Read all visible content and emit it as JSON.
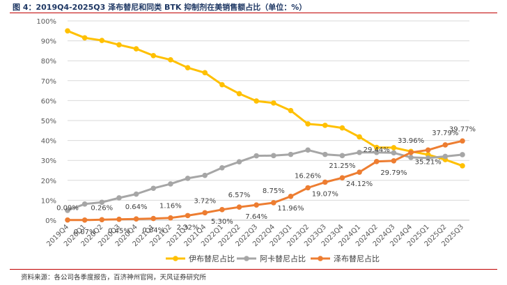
{
  "header": {
    "title": "图 4：2019Q4-2025Q3 泽布替尼和同类 BTK 抑制剂在美销售额占比（单位：%）"
  },
  "footer": {
    "source": "资料来源：各公司各季度报告，百济神州官网，天风证券研究所"
  },
  "chart_data": {
    "type": "line",
    "title": "2019Q4-2025Q3 泽布替尼和同类 BTK 抑制剂在美销售额占比（单位：%）",
    "xlabel": "",
    "ylabel": "",
    "ylim": [
      0,
      100
    ],
    "yticks": [
      0,
      10,
      20,
      30,
      40,
      50,
      60,
      70,
      80,
      90,
      100
    ],
    "ytick_labels": [
      "0%",
      "10%",
      "20%",
      "30%",
      "40%",
      "50%",
      "60%",
      "70%",
      "80%",
      "90%",
      "100%"
    ],
    "categories": [
      "2019Q4",
      "2020Q1",
      "2020Q2",
      "2020Q3",
      "2020Q4",
      "2021Q1",
      "2021Q2",
      "2021Q3",
      "2021Q4",
      "2022Q1",
      "2022Q2",
      "2022Q3",
      "2022Q4",
      "2023Q1",
      "2023Q2",
      "2023Q3",
      "2023Q4",
      "2024Q1",
      "2024Q2",
      "2024Q3",
      "2024Q4",
      "2025Q1",
      "2025Q2",
      "2025Q3"
    ],
    "series": [
      {
        "name": "伊布替尼占比",
        "color": "#FFC000",
        "values": [
          95,
          91.5,
          90.2,
          88,
          86,
          82.6,
          80.5,
          76.5,
          74,
          68,
          63.5,
          59.8,
          58.8,
          55,
          48.3,
          47.6,
          46.3,
          41.8,
          36.5,
          36.4,
          34.5,
          32.9,
          30.4,
          27.3
        ]
      },
      {
        "name": "阿卡替尼占比",
        "color": "#A6A6A6",
        "values": [
          4.9,
          8.1,
          9,
          11.2,
          13.1,
          16,
          18.2,
          21,
          22.5,
          26.3,
          29.3,
          32.3,
          32.4,
          33,
          35.2,
          33,
          32.4,
          34,
          34,
          33.8,
          31.5,
          31.2,
          32,
          32.9
        ]
      },
      {
        "name": "泽布替尼占比",
        "color": "#ED7D31",
        "values": [
          0.09,
          0.07,
          0.26,
          0.45,
          0.64,
          0.84,
          1.16,
          2.32,
          3.72,
          5.3,
          6.57,
          7.64,
          8.75,
          11.96,
          16.26,
          19.07,
          21.25,
          24.12,
          29.44,
          29.79,
          33.96,
          35.21,
          37.79,
          39.77
        ]
      }
    ],
    "data_labels": [
      {
        "index": 0,
        "text": "0.09%",
        "pos": "above"
      },
      {
        "index": 1,
        "text": "0.07%",
        "pos": "below"
      },
      {
        "index": 2,
        "text": "0.26%",
        "pos": "above"
      },
      {
        "index": 3,
        "text": "0.45%",
        "pos": "below"
      },
      {
        "index": 4,
        "text": "0.64%",
        "pos": "above"
      },
      {
        "index": 5,
        "text": "0.84%",
        "pos": "below"
      },
      {
        "index": 6,
        "text": "1.16%",
        "pos": "above"
      },
      {
        "index": 7,
        "text": "2.32%",
        "pos": "below"
      },
      {
        "index": 8,
        "text": "3.72%",
        "pos": "above"
      },
      {
        "index": 9,
        "text": "5.30%",
        "pos": "below"
      },
      {
        "index": 10,
        "text": "6.57%",
        "pos": "above"
      },
      {
        "index": 11,
        "text": "7.64%",
        "pos": "below"
      },
      {
        "index": 12,
        "text": "8.75%",
        "pos": "above"
      },
      {
        "index": 13,
        "text": "11.96%",
        "pos": "below"
      },
      {
        "index": 14,
        "text": "16.26%",
        "pos": "above"
      },
      {
        "index": 15,
        "text": "19.07%",
        "pos": "below"
      },
      {
        "index": 16,
        "text": "21.25%",
        "pos": "above"
      },
      {
        "index": 17,
        "text": "24.12%",
        "pos": "below"
      },
      {
        "index": 18,
        "text": "29.44%",
        "pos": "above"
      },
      {
        "index": 19,
        "text": "29.79%",
        "pos": "below"
      },
      {
        "index": 20,
        "text": "33.96%",
        "pos": "above"
      },
      {
        "index": 21,
        "text": "35.21%",
        "pos": "below"
      },
      {
        "index": 22,
        "text": "37.79%",
        "pos": "above"
      },
      {
        "index": 23,
        "text": "39.77%",
        "pos": "above"
      }
    ],
    "legend": {
      "placement": "bottom-center",
      "entries": [
        "伊布替尼占比",
        "阿卡替尼占比",
        "泽布替尼占比"
      ]
    }
  }
}
